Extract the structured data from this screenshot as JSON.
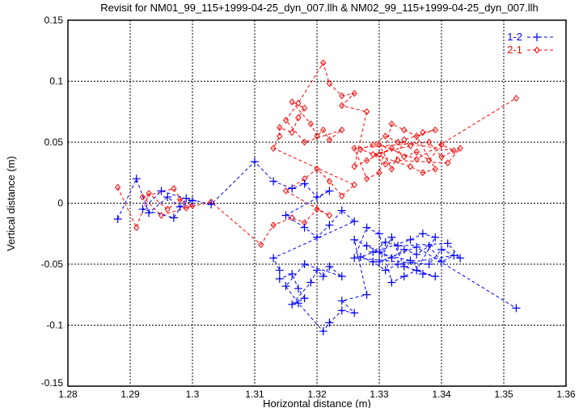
{
  "chart_data": {
    "type": "scatter",
    "title": "Revisit for NM01_99_115+1999-04-25_dyn_007.llh & NM02_99_115+1999-04-25_dyn_007.llh",
    "xlabel": "Horizontal distance (m)",
    "ylabel": "Vertical distance (m)",
    "xlim": [
      1.28,
      1.36
    ],
    "ylim": [
      -0.15,
      0.15
    ],
    "xticks": [
      "1.28",
      "1.29",
      "1.3",
      "1.31",
      "1.32",
      "1.33",
      "1.34",
      "1.35",
      "1.36"
    ],
    "yticks": [
      "0.15",
      "0.1",
      "0.05",
      "0",
      "-0.05",
      "-0.1",
      "-0.15"
    ],
    "grid": true,
    "legend_position": "top-right",
    "series": [
      {
        "name": "1-2",
        "color": "#0000ff",
        "marker": "plus",
        "line": "dashed",
        "points": [
          [
            1.288,
            -0.013
          ],
          [
            1.291,
            0.02
          ],
          [
            1.293,
            -0.008
          ],
          [
            1.296,
            0.005
          ],
          [
            1.298,
            -0.003
          ],
          [
            1.3,
            0.002
          ],
          [
            1.295,
            0.01
          ],
          [
            1.292,
            -0.005
          ],
          [
            1.297,
            -0.012
          ],
          [
            1.299,
            0.004
          ],
          [
            1.303,
            -0.001
          ],
          [
            1.31,
            0.034
          ],
          [
            1.313,
            0.018
          ],
          [
            1.316,
            0.012
          ],
          [
            1.318,
            0.016
          ],
          [
            1.32,
            0.005
          ],
          [
            1.322,
            0.01
          ],
          [
            1.315,
            -0.01
          ],
          [
            1.318,
            -0.02
          ],
          [
            1.32,
            -0.028
          ],
          [
            1.322,
            -0.018
          ],
          [
            1.324,
            -0.006
          ],
          [
            1.326,
            -0.015
          ],
          [
            1.313,
            -0.045
          ],
          [
            1.314,
            -0.055
          ],
          [
            1.314,
            -0.062
          ],
          [
            1.316,
            -0.058
          ],
          [
            1.317,
            -0.07
          ],
          [
            1.318,
            -0.078
          ],
          [
            1.316,
            -0.083
          ],
          [
            1.319,
            -0.065
          ],
          [
            1.32,
            -0.055
          ],
          [
            1.321,
            -0.06
          ],
          [
            1.322,
            -0.052
          ],
          [
            1.324,
            -0.06
          ],
          [
            1.318,
            -0.05
          ],
          [
            1.315,
            -0.068
          ],
          [
            1.317,
            -0.082
          ],
          [
            1.321,
            -0.105
          ],
          [
            1.322,
            -0.098
          ],
          [
            1.324,
            -0.088
          ],
          [
            1.326,
            -0.09
          ],
          [
            1.324,
            -0.08
          ],
          [
            1.328,
            -0.075
          ],
          [
            1.326,
            -0.03
          ],
          [
            1.328,
            -0.035
          ],
          [
            1.33,
            -0.04
          ],
          [
            1.332,
            -0.045
          ],
          [
            1.334,
            -0.038
          ],
          [
            1.336,
            -0.042
          ],
          [
            1.338,
            -0.035
          ],
          [
            1.34,
            -0.048
          ],
          [
            1.342,
            -0.043
          ],
          [
            1.333,
            -0.05
          ],
          [
            1.331,
            -0.055
          ],
          [
            1.329,
            -0.048
          ],
          [
            1.327,
            -0.044
          ],
          [
            1.335,
            -0.03
          ],
          [
            1.337,
            -0.025
          ],
          [
            1.339,
            -0.028
          ],
          [
            1.336,
            -0.055
          ],
          [
            1.334,
            -0.06
          ],
          [
            1.332,
            -0.065
          ],
          [
            1.33,
            -0.025
          ],
          [
            1.328,
            -0.02
          ],
          [
            1.326,
            -0.045
          ],
          [
            1.338,
            -0.05
          ],
          [
            1.34,
            -0.038
          ],
          [
            1.343,
            -0.045
          ],
          [
            1.341,
            -0.033
          ],
          [
            1.333,
            -0.035
          ],
          [
            1.331,
            -0.032
          ],
          [
            1.329,
            -0.04
          ],
          [
            1.335,
            -0.047
          ],
          [
            1.337,
            -0.058
          ],
          [
            1.339,
            -0.06
          ],
          [
            1.334,
            -0.052
          ],
          [
            1.332,
            -0.028
          ],
          [
            1.33,
            -0.048
          ],
          [
            1.336,
            -0.036
          ],
          [
            1.352,
            -0.086
          ]
        ]
      },
      {
        "name": "2-1",
        "color": "#ff0000",
        "marker": "diamond",
        "line": "dashed",
        "points": [
          [
            1.288,
            0.013
          ],
          [
            1.291,
            -0.02
          ],
          [
            1.293,
            0.008
          ],
          [
            1.296,
            -0.005
          ],
          [
            1.298,
            0.003
          ],
          [
            1.3,
            -0.002
          ],
          [
            1.295,
            -0.01
          ],
          [
            1.292,
            0.005
          ],
          [
            1.297,
            0.012
          ],
          [
            1.299,
            -0.004
          ],
          [
            1.303,
            0.001
          ],
          [
            1.311,
            -0.034
          ],
          [
            1.313,
            -0.018
          ],
          [
            1.316,
            -0.012
          ],
          [
            1.318,
            -0.016
          ],
          [
            1.32,
            -0.005
          ],
          [
            1.322,
            -0.01
          ],
          [
            1.315,
            0.01
          ],
          [
            1.318,
            0.02
          ],
          [
            1.32,
            0.028
          ],
          [
            1.322,
            0.018
          ],
          [
            1.324,
            0.006
          ],
          [
            1.326,
            0.015
          ],
          [
            1.313,
            0.045
          ],
          [
            1.314,
            0.055
          ],
          [
            1.314,
            0.062
          ],
          [
            1.316,
            0.058
          ],
          [
            1.317,
            0.07
          ],
          [
            1.318,
            0.078
          ],
          [
            1.316,
            0.083
          ],
          [
            1.319,
            0.065
          ],
          [
            1.32,
            0.055
          ],
          [
            1.321,
            0.06
          ],
          [
            1.322,
            0.052
          ],
          [
            1.324,
            0.06
          ],
          [
            1.318,
            0.05
          ],
          [
            1.315,
            0.068
          ],
          [
            1.317,
            0.082
          ],
          [
            1.321,
            0.115
          ],
          [
            1.322,
            0.098
          ],
          [
            1.324,
            0.088
          ],
          [
            1.326,
            0.09
          ],
          [
            1.324,
            0.08
          ],
          [
            1.328,
            0.075
          ],
          [
            1.326,
            0.03
          ],
          [
            1.328,
            0.035
          ],
          [
            1.33,
            0.04
          ],
          [
            1.332,
            0.045
          ],
          [
            1.334,
            0.038
          ],
          [
            1.336,
            0.042
          ],
          [
            1.338,
            0.035
          ],
          [
            1.34,
            0.048
          ],
          [
            1.342,
            0.043
          ],
          [
            1.333,
            0.05
          ],
          [
            1.331,
            0.055
          ],
          [
            1.329,
            0.048
          ],
          [
            1.327,
            0.044
          ],
          [
            1.335,
            0.03
          ],
          [
            1.337,
            0.025
          ],
          [
            1.339,
            0.028
          ],
          [
            1.336,
            0.055
          ],
          [
            1.334,
            0.06
          ],
          [
            1.332,
            0.065
          ],
          [
            1.33,
            0.025
          ],
          [
            1.328,
            0.02
          ],
          [
            1.326,
            0.045
          ],
          [
            1.338,
            0.05
          ],
          [
            1.34,
            0.038
          ],
          [
            1.343,
            0.045
          ],
          [
            1.341,
            0.033
          ],
          [
            1.333,
            0.035
          ],
          [
            1.331,
            0.032
          ],
          [
            1.329,
            0.04
          ],
          [
            1.335,
            0.047
          ],
          [
            1.337,
            0.058
          ],
          [
            1.339,
            0.06
          ],
          [
            1.334,
            0.052
          ],
          [
            1.332,
            0.028
          ],
          [
            1.33,
            0.048
          ],
          [
            1.336,
            0.036
          ],
          [
            1.352,
            0.086
          ]
        ]
      }
    ]
  }
}
